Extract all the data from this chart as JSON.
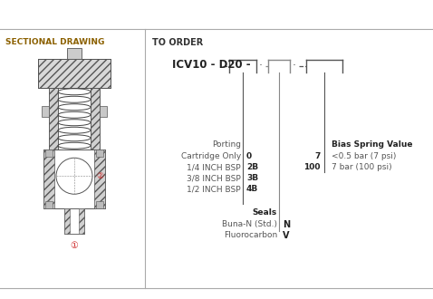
{
  "bg_color": "#ffffff",
  "border_top_color": "#aaaaaa",
  "divider_color": "#aaaaaa",
  "left_section_title": "SECTIONAL DRAWING",
  "right_section_title": "TO ORDER",
  "model_code": "ICV10 - D20 -",
  "left_title_color": "#8B6000",
  "right_title_color": "#333333",
  "text_color": "#555555",
  "bold_color": "#222222",
  "red_color": "#cc2222",
  "line_color": "#555555",
  "gray_line_color": "#888888",
  "porting_label": "Porting",
  "porting_items": [
    [
      "Cartridge Only",
      "0"
    ],
    [
      "1/4 INCH BSP",
      "2B"
    ],
    [
      "3/8 INCH BSP",
      "3B"
    ],
    [
      "1/2 INCH BSP",
      "4B"
    ]
  ],
  "seals_label": "Seals",
  "seals_items": [
    [
      "Buna-N (Std.)",
      "N"
    ],
    [
      "Fluorocarbon",
      "V"
    ]
  ],
  "bias_label": "Bias Spring Value",
  "bias_items": [
    [
      "7",
      "<0.5 bar (7 psi)"
    ],
    [
      "100",
      "7 bar (100 psi)"
    ]
  ],
  "circle1_label": "①",
  "circle2_label": "②"
}
